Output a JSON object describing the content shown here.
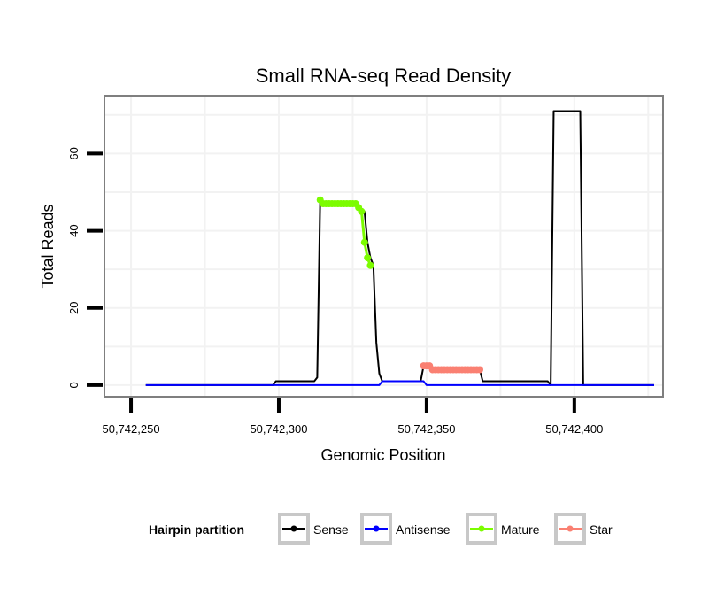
{
  "chart_data": {
    "type": "line",
    "title": "Small RNA-seq Read Density",
    "xlabel": "Genomic Position",
    "ylabel": "Total Reads",
    "xlim": [
      50742241,
      50742430
    ],
    "ylim": [
      -3,
      75
    ],
    "x_ticks": [
      50742250,
      50742300,
      50742350,
      50742400
    ],
    "x_tick_labels": [
      "50,742,250",
      "50,742,300",
      "50,742,350",
      "50,742,400"
    ],
    "y_ticks": [
      0,
      20,
      40,
      60
    ],
    "y_tick_labels": [
      "0",
      "20",
      "40",
      "60"
    ],
    "grid": true,
    "legend": {
      "title": "Hairpin partition",
      "position": "bottom",
      "entries": [
        {
          "name": "Sense",
          "color": "#000000"
        },
        {
          "name": "Antisense",
          "color": "#0000ff"
        },
        {
          "name": "Mature",
          "color": "#7cfc00"
        },
        {
          "name": "Star",
          "color": "#fa8072"
        }
      ]
    },
    "series": [
      {
        "name": "Sense",
        "color": "#000000",
        "x": [
          50742255,
          50742298,
          50742299,
          50742312,
          50742313,
          50742314,
          50742315,
          50742326,
          50742327,
          50742328,
          50742329,
          50742330,
          50742331,
          50742332,
          50742333,
          50742334,
          50742335,
          50742348,
          50742349,
          50742350,
          50742351,
          50742352,
          50742353,
          50742367,
          50742368,
          50742369,
          50742391,
          50742392,
          50742393,
          50742401,
          50742402,
          50742403,
          50742427
        ],
        "values": [
          0,
          0,
          1,
          1,
          2,
          48,
          47,
          47,
          46,
          45,
          45,
          37,
          33,
          31,
          11,
          3,
          1,
          1,
          5,
          5,
          5,
          4,
          4,
          4,
          4,
          1,
          1,
          0,
          71,
          71,
          71,
          0,
          0
        ]
      },
      {
        "name": "Antisense",
        "color": "#0000ff",
        "x": [
          50742255,
          50742334,
          50742335,
          50742349,
          50742350,
          50742427
        ],
        "values": [
          0,
          0,
          1,
          1,
          0,
          0
        ]
      },
      {
        "name": "Mature",
        "color": "#7cfc00",
        "x": [
          50742314,
          50742315,
          50742316,
          50742317,
          50742318,
          50742319,
          50742320,
          50742321,
          50742322,
          50742323,
          50742324,
          50742325,
          50742326,
          50742327,
          50742328,
          50742329,
          50742330,
          50742331
        ],
        "values": [
          48,
          47,
          47,
          47,
          47,
          47,
          47,
          47,
          47,
          47,
          47,
          47,
          47,
          46,
          45,
          37,
          33,
          31
        ]
      },
      {
        "name": "Star",
        "color": "#fa8072",
        "x": [
          50742349,
          50742350,
          50742351,
          50742352,
          50742353,
          50742354,
          50742355,
          50742356,
          50742357,
          50742358,
          50742359,
          50742360,
          50742361,
          50742362,
          50742363,
          50742364,
          50742365,
          50742366,
          50742367,
          50742368
        ],
        "values": [
          5,
          5,
          5,
          4,
          4,
          4,
          4,
          4,
          4,
          4,
          4,
          4,
          4,
          4,
          4,
          4,
          4,
          4,
          4,
          4
        ]
      }
    ]
  }
}
